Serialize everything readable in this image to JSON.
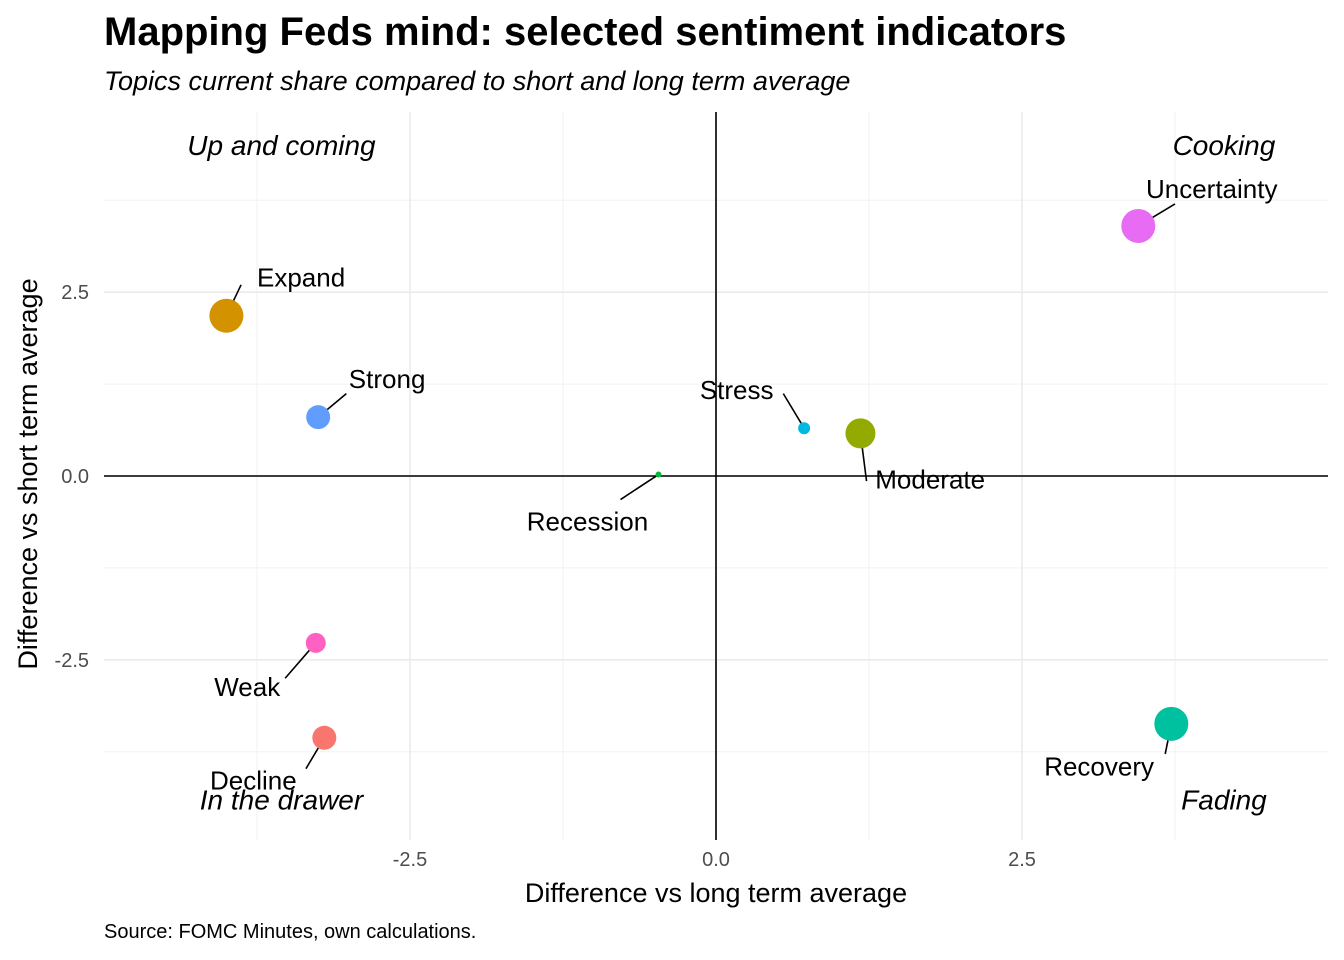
{
  "title": "Mapping Feds mind: selected sentiment indicators",
  "subtitle": "Topics current share compared to short and long term average",
  "caption": "Source: FOMC Minutes, own calculations.",
  "chart_data": {
    "type": "scatter",
    "xlabel": "Difference vs long term average",
    "ylabel": "Difference vs short term average",
    "xlim": [
      -5,
      5
    ],
    "ylim": [
      -4.95,
      4.95
    ],
    "x_ticks": [
      -2.5,
      0.0,
      2.5
    ],
    "x_tick_labels": [
      "-2.5",
      "0.0",
      "2.5"
    ],
    "y_ticks": [
      -2.5,
      0.0,
      2.5
    ],
    "y_tick_labels": [
      "-2.5",
      "0.0",
      "2.5"
    ],
    "grid": true,
    "reference_lines": {
      "x": 0,
      "y": 0
    },
    "quadrant_labels": [
      {
        "text": "Up and coming",
        "x": -3.55,
        "y": 4.5
      },
      {
        "text": "Cooking",
        "x": 4.15,
        "y": 4.5
      },
      {
        "text": "In the drawer",
        "x": -3.55,
        "y": -4.4
      },
      {
        "text": "Fading",
        "x": 4.15,
        "y": -4.4
      }
    ],
    "points": [
      {
        "label": "Uncertainty",
        "x": 3.45,
        "y": 3.4,
        "size": 17,
        "color": "#E76BF3",
        "label_x": 4.05,
        "label_y": 3.9,
        "anchor": "middle",
        "seg_x": 3.75,
        "seg_y": 3.7
      },
      {
        "label": "Expand",
        "x": -4.0,
        "y": 2.18,
        "size": 17,
        "color": "#D39200",
        "label_x": -3.75,
        "label_y": 2.7,
        "anchor": "start",
        "seg_x": -3.88,
        "seg_y": 2.6
      },
      {
        "label": "Strong",
        "x": -3.25,
        "y": 0.8,
        "size": 12,
        "color": "#619CFF",
        "label_x": -3.0,
        "label_y": 1.32,
        "anchor": "start",
        "seg_x": -3.02,
        "seg_y": 1.12
      },
      {
        "label": "Stress",
        "x": 0.72,
        "y": 0.65,
        "size": 6,
        "color": "#00B9E3",
        "label_x": 0.47,
        "label_y": 1.17,
        "anchor": "end",
        "seg_x": 0.55,
        "seg_y": 1.12
      },
      {
        "label": "Moderate",
        "x": 1.18,
        "y": 0.58,
        "size": 15,
        "color": "#93AA00",
        "label_x": 1.75,
        "label_y": -0.05,
        "anchor": "middle",
        "seg_x": 1.23,
        "seg_y": -0.07
      },
      {
        "label": "Recession",
        "x": -0.47,
        "y": 0.02,
        "size": 3,
        "color": "#00BA38",
        "label_x": -1.05,
        "label_y": -0.62,
        "anchor": "middle",
        "seg_x": -0.78,
        "seg_y": -0.32
      },
      {
        "label": "Weak",
        "x": -3.27,
        "y": -2.27,
        "size": 10,
        "color": "#FF61C3",
        "label_x": -3.83,
        "label_y": -2.87,
        "anchor": "middle",
        "seg_x": -3.52,
        "seg_y": -2.75
      },
      {
        "label": "Decline",
        "x": -3.2,
        "y": -3.56,
        "size": 12,
        "color": "#F8766D",
        "label_x": -3.78,
        "label_y": -4.14,
        "anchor": "middle",
        "seg_x": -3.35,
        "seg_y": -3.98
      },
      {
        "label": "Recovery",
        "x": 3.72,
        "y": -3.37,
        "size": 17,
        "color": "#00C19F",
        "label_x": 3.13,
        "label_y": -3.95,
        "anchor": "middle",
        "seg_x": 3.67,
        "seg_y": -3.78
      }
    ]
  }
}
